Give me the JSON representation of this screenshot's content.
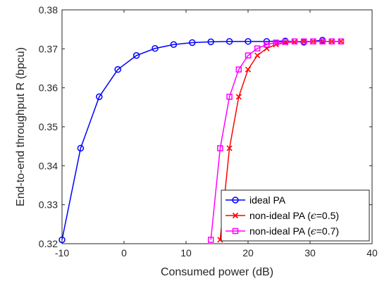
{
  "chart_data": {
    "type": "line",
    "xlabel": "Consumed power (dB)",
    "ylabel": "End-to-end throughput R (bpcu)",
    "xlim": [
      -10,
      40
    ],
    "ylim": [
      0.32,
      0.38
    ],
    "xticks": [
      "-10",
      "0",
      "10",
      "20",
      "30",
      "40"
    ],
    "yticks": [
      "0.32",
      "0.33",
      "0.34",
      "0.35",
      "0.36",
      "0.37",
      "0.38"
    ],
    "grid": false,
    "legend_position": "bottom-right",
    "series": [
      {
        "name": "ideal PA",
        "color": "#0000ff",
        "marker": "circle",
        "x": [
          -10,
          -7,
          -4,
          -1,
          2,
          5,
          8,
          11,
          14,
          17,
          20,
          23,
          26,
          29,
          32
        ],
        "y": [
          0.321,
          0.3445,
          0.3577,
          0.3647,
          0.3683,
          0.3701,
          0.3711,
          0.3716,
          0.3718,
          0.3719,
          0.3719,
          0.3719,
          0.372,
          0.3717,
          0.3722
        ]
      },
      {
        "name_prefix": "non-ideal PA (",
        "name_symbol": "ϵ",
        "name_suffix": "=0.5)",
        "color": "#ff0000",
        "marker": "x",
        "x": [
          15.5,
          17,
          18.5,
          20,
          21.5,
          23,
          24.5,
          26,
          27.5,
          29,
          30.5,
          32,
          33.5,
          35
        ],
        "y": [
          0.321,
          0.3445,
          0.3577,
          0.3647,
          0.3683,
          0.3701,
          0.3711,
          0.3716,
          0.3718,
          0.3719,
          0.3719,
          0.3719,
          0.3719,
          0.3719
        ]
      },
      {
        "name_prefix": "non-ideal PA (",
        "name_symbol": "ϵ",
        "name_suffix": "=0.7)",
        "color": "#ff00ff",
        "marker": "square",
        "x": [
          14,
          15.5,
          17,
          18.5,
          20,
          21.5,
          23,
          24.5,
          26,
          27.5,
          29,
          30.5,
          32,
          33.5,
          35
        ],
        "y": [
          0.321,
          0.3445,
          0.3577,
          0.3647,
          0.3683,
          0.3701,
          0.3711,
          0.3716,
          0.3718,
          0.3719,
          0.3719,
          0.3719,
          0.3719,
          0.3719,
          0.3719
        ]
      }
    ]
  }
}
